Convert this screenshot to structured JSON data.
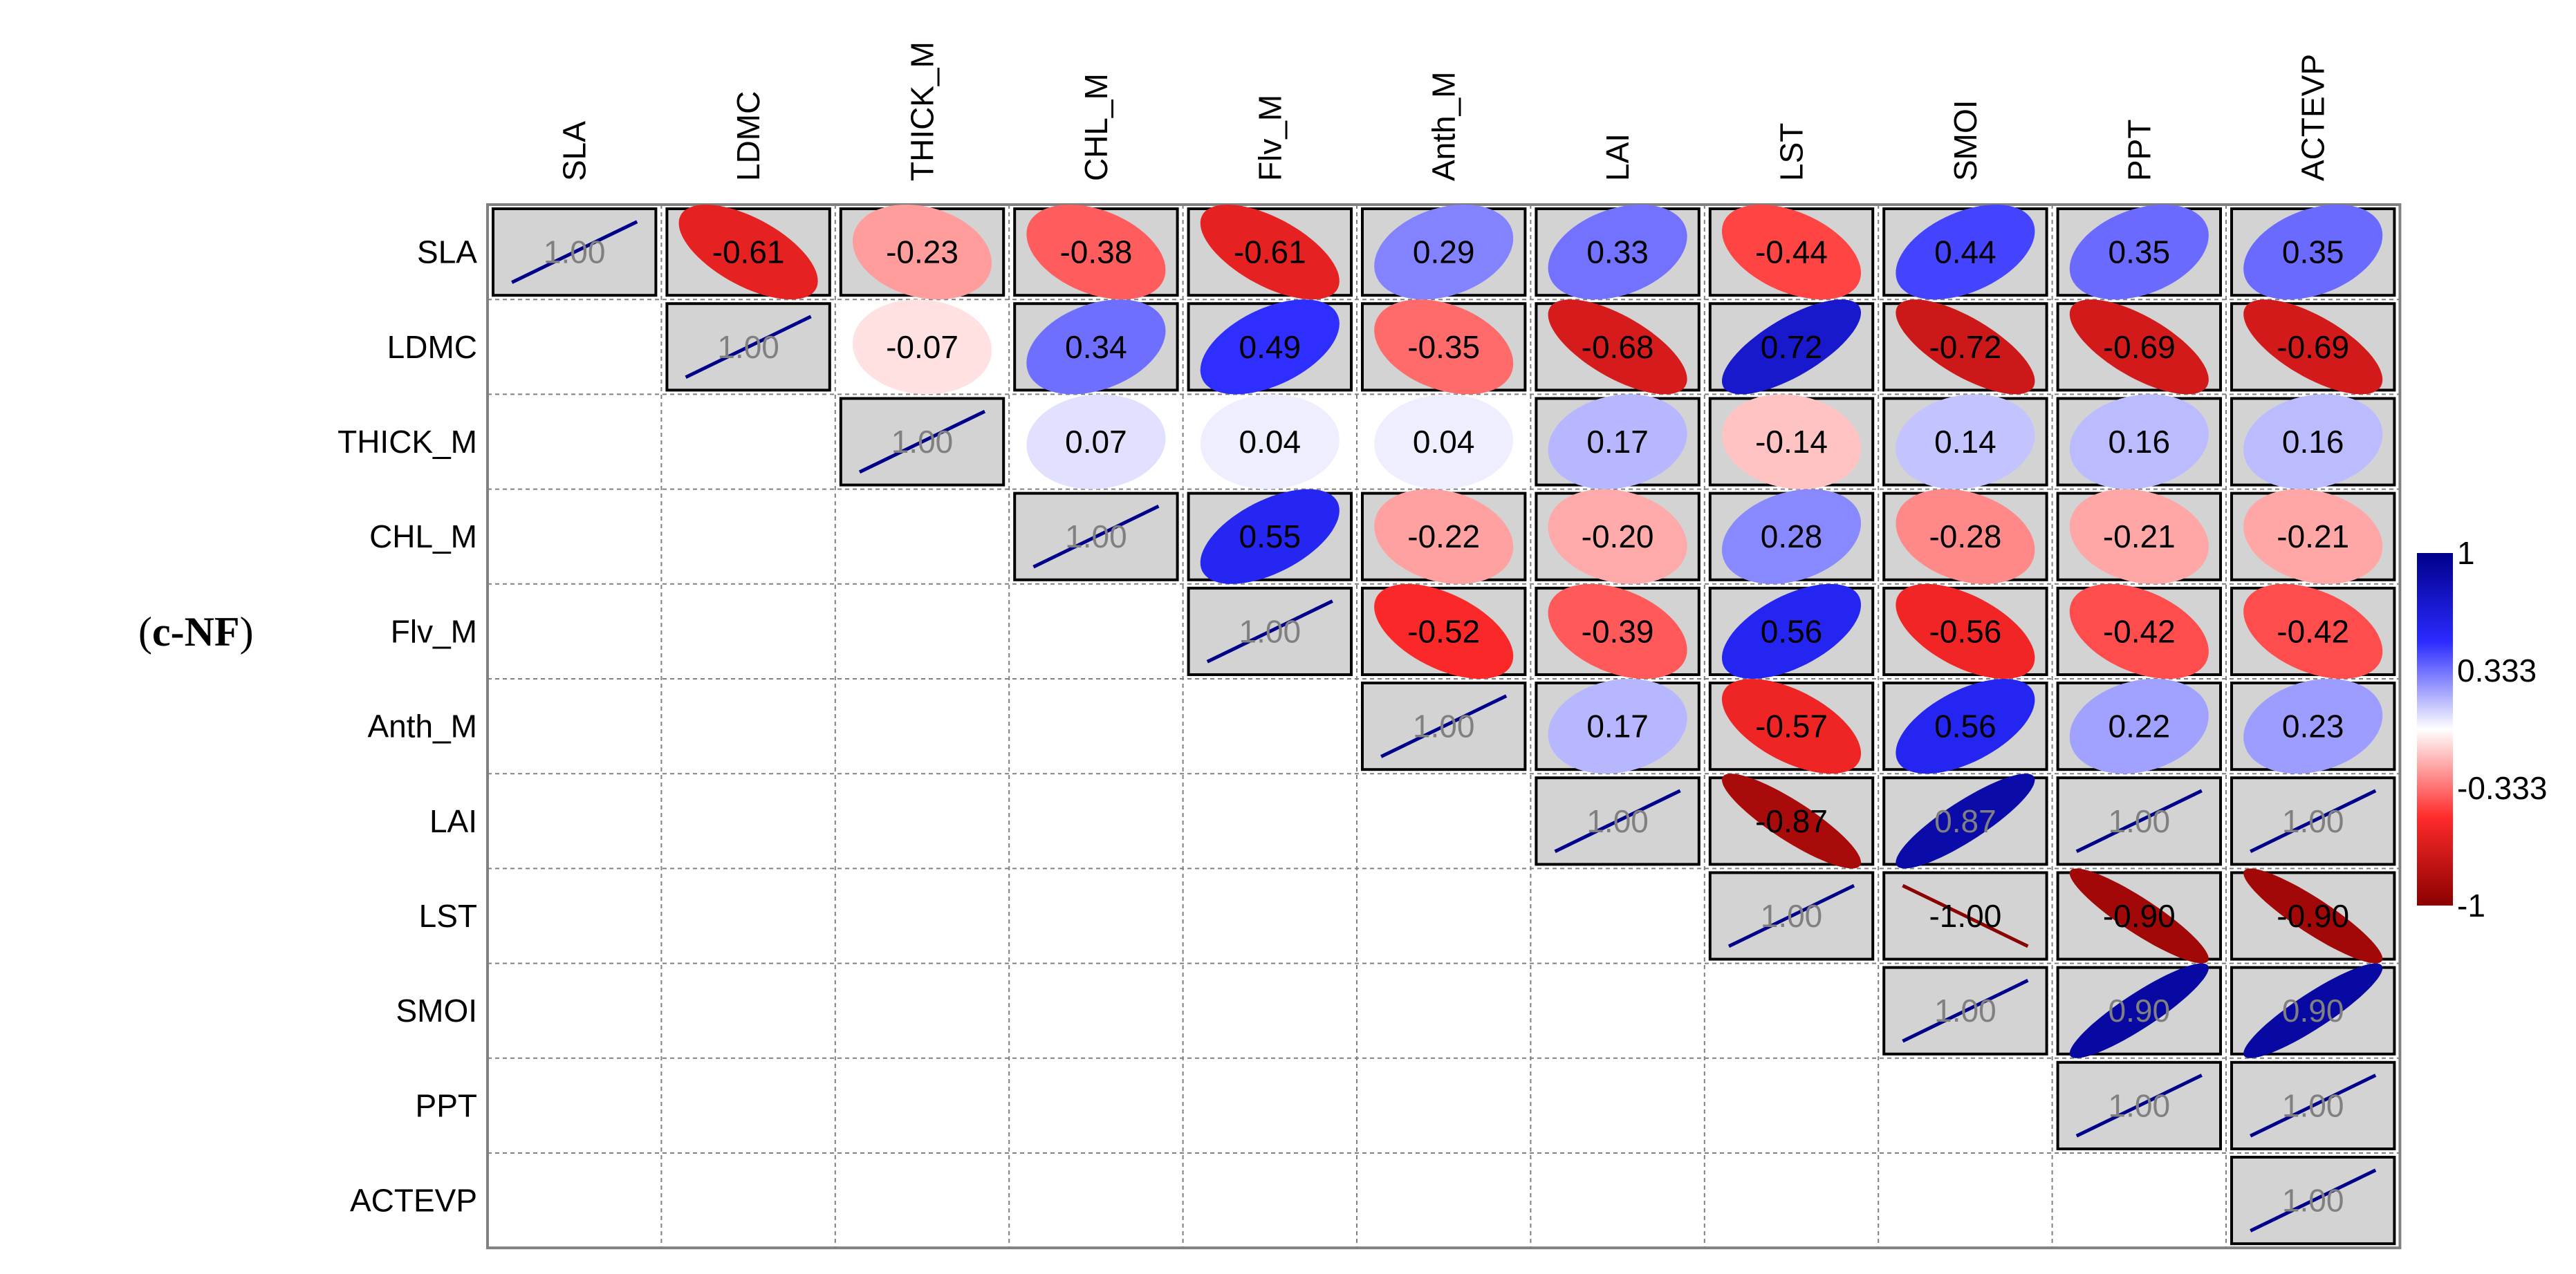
{
  "panel_label": {
    "open": "(",
    "text": "c-NF",
    "close": ")"
  },
  "chart_data": {
    "type": "heatmap",
    "subtype": "correlation-ellipse-upper-triangle",
    "variables": [
      "SLA",
      "LDMC",
      "THICK_M",
      "CHL_M",
      "Flv_M",
      "Anth_M",
      "LAI",
      "LST",
      "SMOI",
      "PPT",
      "ACTEVP"
    ],
    "values": [
      [
        1.0,
        -0.61,
        -0.23,
        -0.38,
        -0.61,
        0.29,
        0.33,
        -0.44,
        0.44,
        0.35,
        0.35
      ],
      [
        null,
        1.0,
        -0.07,
        0.34,
        0.49,
        -0.35,
        -0.68,
        0.72,
        -0.72,
        -0.69,
        -0.69
      ],
      [
        null,
        null,
        1.0,
        0.07,
        0.04,
        0.04,
        0.17,
        -0.14,
        0.14,
        0.16,
        0.16
      ],
      [
        null,
        null,
        null,
        1.0,
        0.55,
        -0.22,
        -0.2,
        0.28,
        -0.28,
        -0.21,
        -0.21
      ],
      [
        null,
        null,
        null,
        null,
        1.0,
        -0.52,
        -0.39,
        0.56,
        -0.56,
        -0.42,
        -0.42
      ],
      [
        null,
        null,
        null,
        null,
        null,
        1.0,
        0.17,
        -0.57,
        0.56,
        0.22,
        0.23
      ],
      [
        null,
        null,
        null,
        null,
        null,
        null,
        1.0,
        -0.87,
        0.87,
        1.0,
        1.0
      ],
      [
        null,
        null,
        null,
        null,
        null,
        null,
        null,
        1.0,
        -1.0,
        -0.9,
        -0.9
      ],
      [
        null,
        null,
        null,
        null,
        null,
        null,
        null,
        null,
        1.0,
        0.9,
        0.9
      ],
      [
        null,
        null,
        null,
        null,
        null,
        null,
        null,
        null,
        null,
        1.0,
        1.0
      ],
      [
        null,
        null,
        null,
        null,
        null,
        null,
        null,
        null,
        null,
        null,
        1.0
      ]
    ],
    "labels": [
      [
        "1.00",
        "-0.61",
        "-0.23",
        "-0.38",
        "-0.61",
        "0.29",
        "0.33",
        "-0.44",
        "0.44",
        "0.35",
        "0.35"
      ],
      [
        null,
        "1.00",
        "-0.07",
        "0.34",
        "0.49",
        "-0.35",
        "-0.68",
        "0.72",
        "-0.72",
        "-0.69",
        "-0.69"
      ],
      [
        null,
        null,
        "1.00",
        "0.07",
        "0.04",
        "0.04",
        "0.17",
        "-0.14",
        "0.14",
        "0.16",
        "0.16"
      ],
      [
        null,
        null,
        null,
        "1.00",
        "0.55",
        "-0.22",
        "-0.20",
        "0.28",
        "-0.28",
        "-0.21",
        "-0.21"
      ],
      [
        null,
        null,
        null,
        null,
        "1.00",
        "-0.52",
        "-0.39",
        "0.56",
        "-0.56",
        "-0.42",
        "-0.42"
      ],
      [
        null,
        null,
        null,
        null,
        null,
        "1.00",
        "0.17",
        "-0.57",
        "0.56",
        "0.22",
        "0.23"
      ],
      [
        null,
        null,
        null,
        null,
        null,
        null,
        "1.00",
        "-0.87",
        "0.87",
        "1.00",
        "1.00"
      ],
      [
        null,
        null,
        null,
        null,
        null,
        null,
        null,
        "1.00",
        "-1.00",
        "-0.90",
        "-0.90"
      ],
      [
        null,
        null,
        null,
        null,
        null,
        null,
        null,
        null,
        "1.00",
        "0.90",
        "0.90"
      ],
      [
        null,
        null,
        null,
        null,
        null,
        null,
        null,
        null,
        null,
        "1.00",
        "1.00"
      ],
      [
        null,
        null,
        null,
        null,
        null,
        null,
        null,
        null,
        null,
        null,
        "1.00"
      ]
    ],
    "significant": [
      [
        true,
        true,
        true,
        true,
        true,
        true,
        true,
        true,
        true,
        true,
        true
      ],
      [
        null,
        true,
        false,
        true,
        true,
        true,
        true,
        true,
        true,
        true,
        true
      ],
      [
        null,
        null,
        true,
        false,
        false,
        false,
        true,
        true,
        true,
        true,
        true
      ],
      [
        null,
        null,
        null,
        true,
        true,
        true,
        true,
        true,
        true,
        true,
        true
      ],
      [
        null,
        null,
        null,
        null,
        true,
        true,
        true,
        true,
        true,
        true,
        true
      ],
      [
        null,
        null,
        null,
        null,
        null,
        true,
        true,
        true,
        true,
        true,
        true
      ],
      [
        null,
        null,
        null,
        null,
        null,
        null,
        true,
        true,
        true,
        true,
        true
      ],
      [
        null,
        null,
        null,
        null,
        null,
        null,
        null,
        true,
        true,
        true,
        true
      ],
      [
        null,
        null,
        null,
        null,
        null,
        null,
        null,
        null,
        true,
        true,
        true
      ],
      [
        null,
        null,
        null,
        null,
        null,
        null,
        null,
        null,
        null,
        true,
        true
      ],
      [
        null,
        null,
        null,
        null,
        null,
        null,
        null,
        null,
        null,
        null,
        true
      ]
    ],
    "colorbar": {
      "range": [
        -1,
        1
      ],
      "tick_labels": [
        "1",
        "0.333",
        "-0.333",
        "-1"
      ],
      "tick_values": [
        1,
        0.333,
        -0.333,
        -1
      ],
      "colors": {
        "negative_end": "#8b0000",
        "negative": "#ff2a2a",
        "neutral": "#ffffff",
        "positive": "#2a2aff",
        "positive_end": "#00008b"
      }
    },
    "colors": {
      "significant_box_fill": "#d3d3d3",
      "grid": "#808080",
      "box_border": "#000000",
      "diag_text": "#808080"
    }
  }
}
